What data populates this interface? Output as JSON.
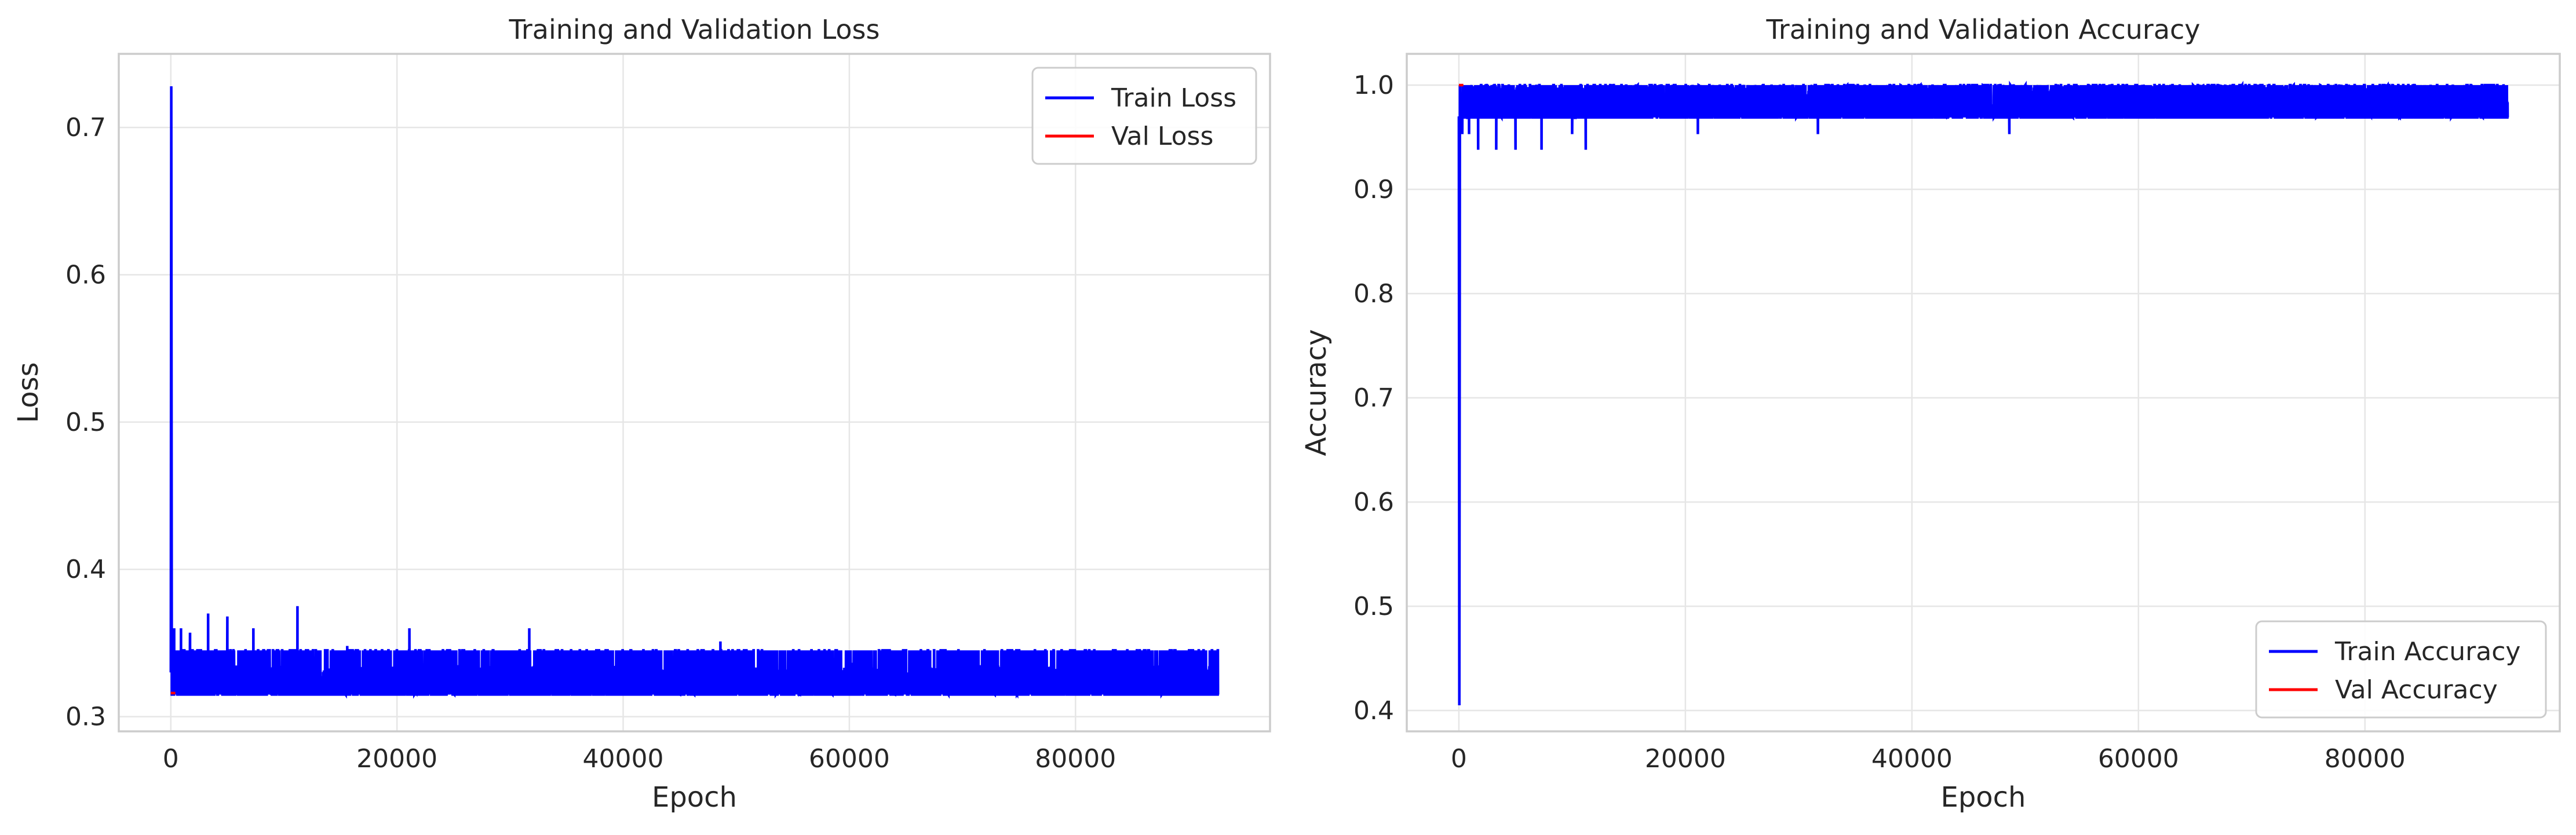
{
  "chart_data": [
    {
      "type": "line",
      "title": "Training and Validation Loss",
      "xlabel": "Epoch",
      "ylabel": "Loss",
      "xlim": [
        -4600,
        97200
      ],
      "ylim": [
        0.29,
        0.75
      ],
      "xticks": [
        0,
        20000,
        40000,
        60000,
        80000
      ],
      "xtick_labels": [
        "0",
        "20000",
        "40000",
        "60000",
        "80000"
      ],
      "yticks": [
        0.3,
        0.4,
        0.5,
        0.6,
        0.7
      ],
      "ytick_labels": [
        "0.3",
        "0.4",
        "0.5",
        "0.6",
        "0.7"
      ],
      "grid": true,
      "legend_position": "upper right",
      "series": [
        {
          "name": "Train Loss",
          "color": "#0000ff",
          "pattern": {
            "start": [
              [
                0,
                0.33
              ],
              [
                40,
                0.728
              ],
              [
                90,
                0.315
              ]
            ],
            "band_low": 0.315,
            "band_high": 0.345,
            "band_from": 100,
            "band_to": 92600,
            "dense_mid": 0.325,
            "spikes": [
              [
                300,
                0.36
              ],
              [
                900,
                0.36
              ],
              [
                1700,
                0.357
              ],
              [
                3300,
                0.37
              ],
              [
                5000,
                0.368
              ],
              [
                7300,
                0.36
              ],
              [
                11200,
                0.375
              ],
              [
                15600,
                0.348
              ],
              [
                21100,
                0.36
              ],
              [
                31700,
                0.36
              ],
              [
                48600,
                0.351
              ]
            ]
          }
        },
        {
          "name": "Val Loss",
          "color": "#ff0000",
          "x": [
            0,
            400
          ],
          "y": [
            0.316,
            0.316
          ]
        }
      ]
    },
    {
      "type": "line",
      "title": "Training and Validation Accuracy",
      "xlabel": "Epoch",
      "ylabel": "Accuracy",
      "xlim": [
        -4600,
        97200
      ],
      "ylim": [
        0.38,
        1.03
      ],
      "xticks": [
        0,
        20000,
        40000,
        60000,
        80000
      ],
      "xtick_labels": [
        "0",
        "20000",
        "40000",
        "60000",
        "80000"
      ],
      "yticks": [
        0.4,
        0.5,
        0.6,
        0.7,
        0.8,
        0.9,
        1.0
      ],
      "ytick_labels": [
        "0.4",
        "0.5",
        "0.6",
        "0.7",
        "0.8",
        "0.9",
        "1.0"
      ],
      "grid": true,
      "legend_position": "lower right",
      "series": [
        {
          "name": "Train Accuracy",
          "color": "#0000ff",
          "pattern": {
            "start": [
              [
                0,
                0.97
              ],
              [
                40,
                0.405
              ],
              [
                90,
                1.0
              ]
            ],
            "band_low": 0.969,
            "band_high": 1.0,
            "band_from": 100,
            "band_to": 92600,
            "dense_mid": 0.985,
            "spikes": [
              [
                300,
                0.953
              ],
              [
                900,
                0.953
              ],
              [
                1700,
                0.938
              ],
              [
                3300,
                0.938
              ],
              [
                5000,
                0.938
              ],
              [
                7300,
                0.938
              ],
              [
                10000,
                0.953
              ],
              [
                11200,
                0.938
              ],
              [
                21100,
                0.953
              ],
              [
                31700,
                0.953
              ],
              [
                48600,
                0.953
              ]
            ]
          }
        },
        {
          "name": "Val Accuracy",
          "color": "#ff0000",
          "x": [
            0,
            400
          ],
          "y": [
            1.0,
            1.0
          ]
        }
      ]
    }
  ]
}
